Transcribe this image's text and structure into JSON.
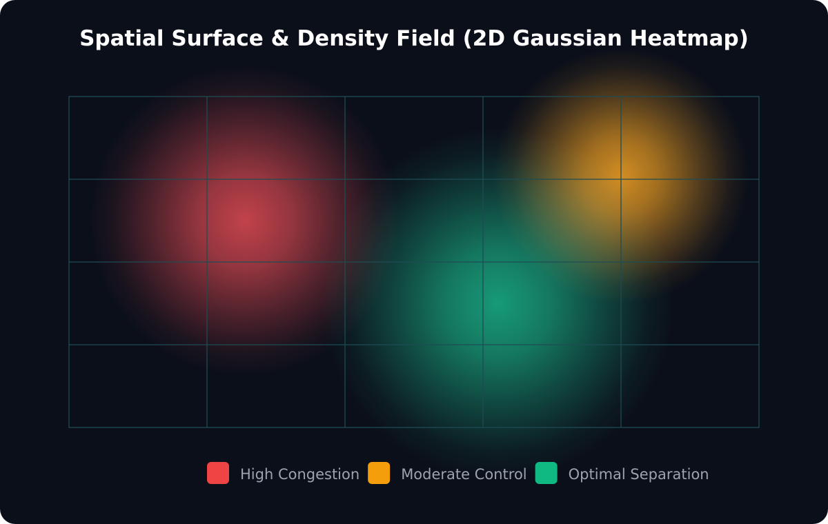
{
  "chart_data": {
    "type": "heatmap",
    "title": "Spatial Surface & Density Field (2D Gaussian Heatmap)",
    "series": [
      {
        "name": "High Congestion",
        "color": "#ef4444"
      },
      {
        "name": "Moderate Control",
        "color": "#f59e0b"
      },
      {
        "name": "Optimal Separation",
        "color": "#10b981"
      }
    ]
  }
}
